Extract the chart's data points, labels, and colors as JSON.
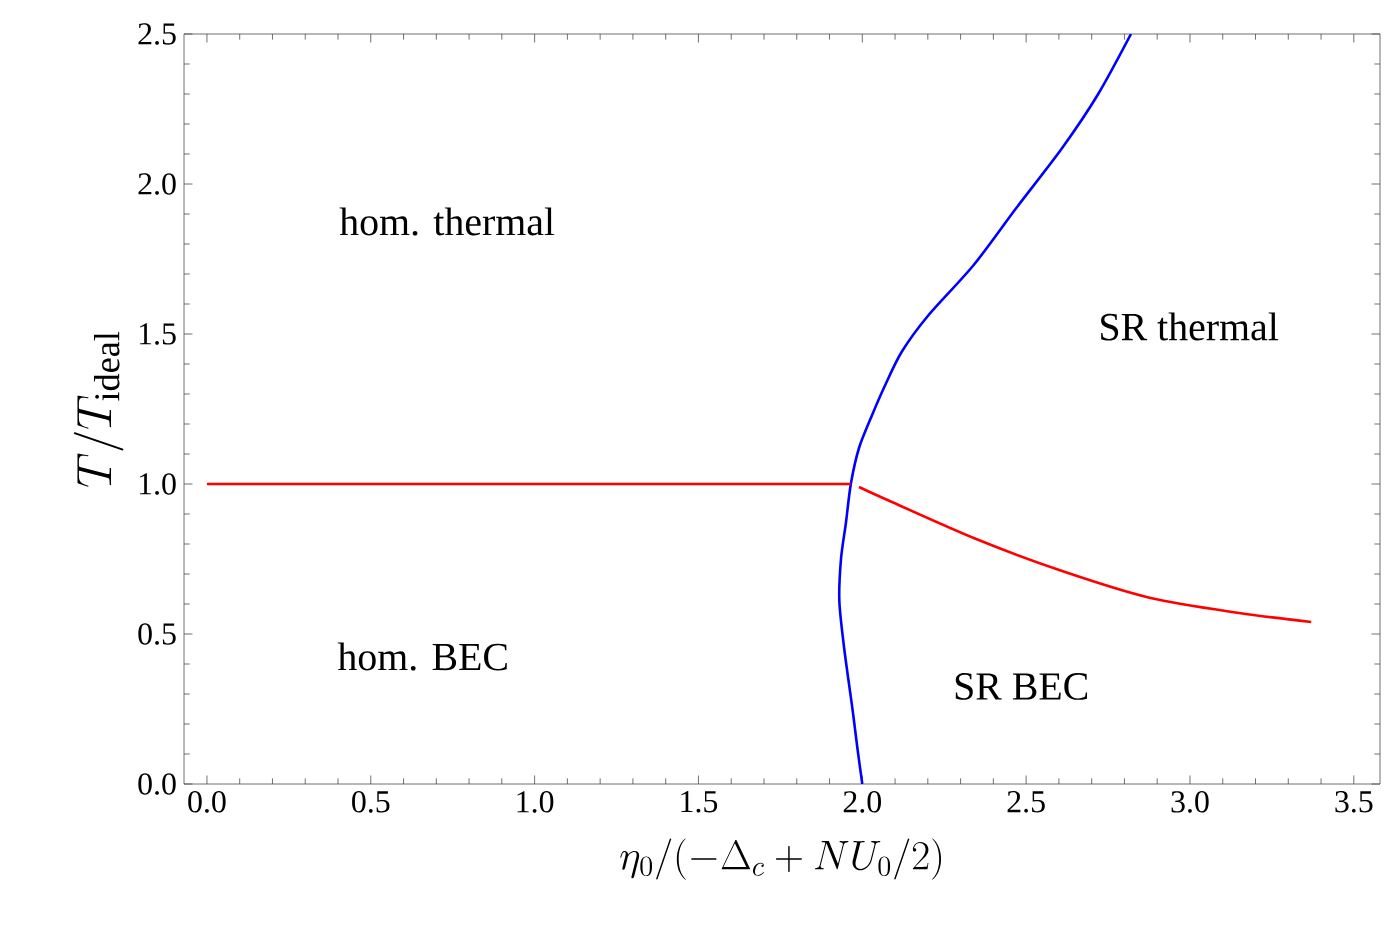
{
  "chart_data": {
    "type": "line",
    "xlabel": "\\eta_0/(-\\Delta_c+NU_0/2)",
    "ylabel": "T/T_{\\mathrm{ideal}}",
    "xlim": [
      -0.07,
      3.58
    ],
    "ylim": [
      0,
      2.5
    ],
    "xticks": [
      {
        "value": 0,
        "label": "0.0"
      },
      {
        "value": 0.5,
        "label": "0.5"
      },
      {
        "value": 1,
        "label": "1.0"
      },
      {
        "value": 1.5,
        "label": "1.5"
      },
      {
        "value": 2,
        "label": "2.0"
      },
      {
        "value": 2.5,
        "label": "2.5"
      },
      {
        "value": 3,
        "label": "3.0"
      },
      {
        "value": 3.5,
        "label": "3.5"
      }
    ],
    "yticks": [
      {
        "value": 0,
        "label": "0.0"
      },
      {
        "value": 0.5,
        "label": "0.5"
      },
      {
        "value": 1,
        "label": "1.0"
      },
      {
        "value": 1.5,
        "label": "1.5"
      },
      {
        "value": 2,
        "label": "2.0"
      },
      {
        "value": 2.5,
        "label": "2.5"
      }
    ],
    "grid": false,
    "marker": "none",
    "line_style": "solid",
    "annotations": [
      "hom. thermal",
      "SR thermal",
      "hom. BEC",
      "SR BEC"
    ],
    "series": [
      {
        "color": "#0000ff",
        "x": [
          2.0,
          1.985,
          1.97,
          1.945,
          1.93,
          1.935,
          1.95,
          1.965,
          1.99,
          2.03,
          2.07,
          2.12,
          2.2,
          2.34,
          2.47,
          2.61,
          2.72,
          2.82
        ],
        "values": [
          0,
          0.12,
          0.25,
          0.45,
          0.61,
          0.75,
          0.87,
          1.0,
          1.12,
          1.23,
          1.33,
          1.44,
          1.56,
          1.73,
          1.92,
          2.12,
          2.3,
          2.5
        ]
      },
      {
        "color": "#ff0000",
        "x": [
          0,
          1.965
        ],
        "values": [
          1.0,
          1.0
        ]
      },
      {
        "color": "#ff0000",
        "x": [
          1.99,
          2.07,
          2.34,
          2.61,
          2.88,
          3.15,
          3.37
        ],
        "values": [
          0.99,
          0.95,
          0.82,
          0.71,
          0.62,
          0.57,
          0.54
        ]
      }
    ]
  }
}
